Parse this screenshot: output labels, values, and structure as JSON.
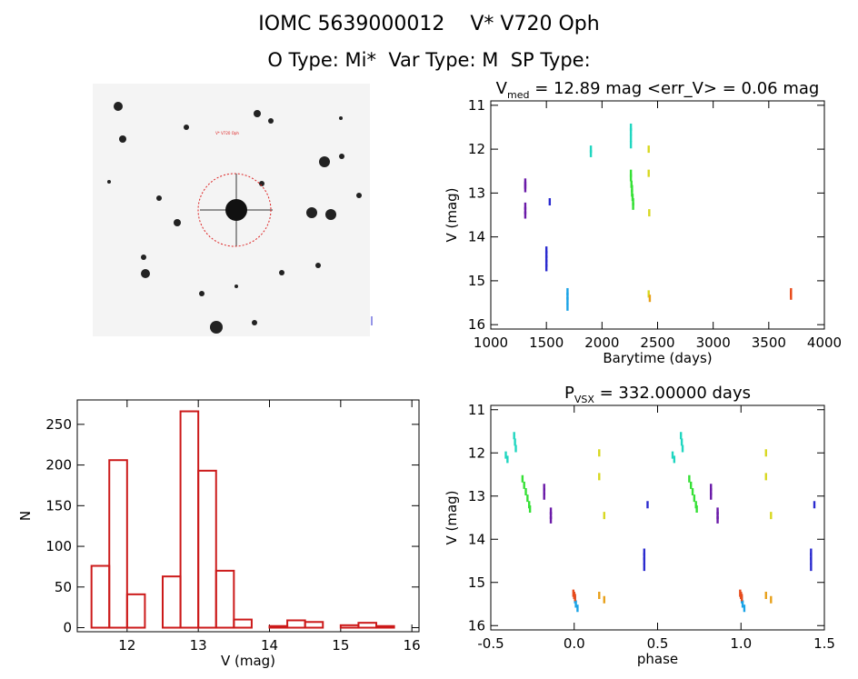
{
  "header": {
    "line1": "IOMC 5639000012    V* V720 Oph",
    "line2": "O Type: Mi*  Var Type: M  SP Type:"
  },
  "image_panel": {
    "description_free": true,
    "label_center": "V* V720 Oph"
  },
  "chart_data": [
    {
      "type": "scatter",
      "title_parts": {
        "sym": "V",
        "sub": "med",
        "rest": " = 12.89 mag <err_V> = 0.06 mag"
      },
      "xlabel": "Barytime (days)",
      "ylabel": "V (mag)",
      "xlim": [
        1000,
        4000
      ],
      "ylim": [
        16.1,
        10.9
      ],
      "xticks": [
        1000,
        1500,
        2000,
        2500,
        3000,
        3500,
        4000
      ],
      "yticks": [
        11,
        12,
        13,
        14,
        15,
        16
      ],
      "series": [
        {
          "color": "#6a1aa8",
          "x": [
            1310,
            1310,
            1310,
            1310,
            1310,
            1310
          ],
          "y": [
            12.75,
            12.82,
            12.9,
            13.3,
            13.4,
            13.5
          ]
        },
        {
          "color": "#2b2bcf",
          "x": [
            1500,
            1500,
            1500,
            1500,
            1500,
            1530
          ],
          "y": [
            14.3,
            14.4,
            14.5,
            14.6,
            14.7,
            13.2
          ]
        },
        {
          "color": "#1aa3e6",
          "x": [
            1690,
            1690,
            1690,
            1690
          ],
          "y": [
            15.25,
            15.35,
            15.45,
            15.6
          ]
        },
        {
          "color": "#20d6c0",
          "x": [
            1900,
            1900,
            2260,
            2260,
            2260,
            2260
          ],
          "y": [
            12.0,
            12.1,
            11.5,
            11.6,
            11.75,
            11.9
          ]
        },
        {
          "color": "#35e035",
          "x": [
            2260,
            2260,
            2265,
            2270,
            2270,
            2275,
            2280,
            2280
          ],
          "y": [
            12.55,
            12.65,
            12.8,
            12.9,
            13.0,
            13.1,
            13.2,
            13.3
          ]
        },
        {
          "color": "#d8d820",
          "x": [
            2420,
            2420,
            2425,
            2420
          ],
          "y": [
            12.0,
            12.55,
            13.45,
            15.3
          ]
        },
        {
          "color": "#e8a01a",
          "x": [
            2430
          ],
          "y": [
            15.4
          ]
        },
        {
          "color": "#e84a1a",
          "x": [
            3700,
            3700,
            3700
          ],
          "y": [
            15.25,
            15.3,
            15.35
          ]
        }
      ]
    },
    {
      "type": "bar",
      "title": "",
      "xlabel": "V (mag)",
      "ylabel": "N",
      "xlim": [
        11.3,
        16.1
      ],
      "ylim": [
        -5,
        280
      ],
      "xticks": [
        12,
        13,
        14,
        15,
        16
      ],
      "yticks": [
        0,
        50,
        100,
        150,
        200,
        250
      ],
      "bin_width": 0.25,
      "bin_starts": [
        11.5,
        11.75,
        12.0,
        12.25,
        12.5,
        12.75,
        13.0,
        13.25,
        13.5,
        13.75,
        14.0,
        14.25,
        14.5,
        14.75,
        15.0,
        15.25,
        15.5
      ],
      "values": [
        76,
        206,
        41,
        0,
        63,
        266,
        193,
        70,
        10,
        0,
        2,
        9,
        7,
        0,
        3,
        6,
        2
      ],
      "color": "#cc1a1a"
    },
    {
      "type": "scatter",
      "title_parts": {
        "sym": "P",
        "sub": "VSX",
        "rest": " = 332.00000 days"
      },
      "xlabel": "phase",
      "ylabel": "V (mag)",
      "xlim": [
        -0.5,
        1.5
      ],
      "ylim": [
        16.1,
        10.9
      ],
      "xticks": [
        -0.5,
        0.0,
        0.5,
        1.0,
        1.5
      ],
      "yticks": [
        11,
        12,
        13,
        14,
        15,
        16
      ],
      "series": [
        {
          "color": "#6a1aa8",
          "x": [
            -0.18,
            -0.18,
            -0.18,
            -0.14,
            -0.14,
            -0.14,
            0.82,
            0.82,
            0.82,
            0.86,
            0.86,
            0.86
          ],
          "y": [
            12.8,
            12.9,
            13.0,
            13.35,
            13.45,
            13.55,
            12.8,
            12.9,
            13.0,
            13.35,
            13.45,
            13.55
          ]
        },
        {
          "color": "#2b2bcf",
          "x": [
            0.42,
            0.42,
            0.42,
            0.42,
            0.44,
            1.42,
            1.42,
            1.42,
            1.42,
            1.44
          ],
          "y": [
            14.3,
            14.4,
            14.5,
            14.65,
            13.2,
            14.3,
            14.4,
            14.5,
            14.65,
            13.2
          ]
        },
        {
          "color": "#1aa3e6",
          "x": [
            0.0,
            0.005,
            0.01,
            0.02,
            1.0,
            1.005,
            1.01,
            1.02
          ],
          "y": [
            15.3,
            15.4,
            15.5,
            15.6,
            15.3,
            15.4,
            15.5,
            15.6
          ]
        },
        {
          "color": "#20d6c0",
          "x": [
            -0.41,
            -0.4,
            -0.36,
            -0.355,
            -0.35,
            0.59,
            0.6,
            0.64,
            0.645,
            0.65
          ],
          "y": [
            12.05,
            12.15,
            11.6,
            11.75,
            11.9,
            12.05,
            12.15,
            11.6,
            11.75,
            11.9
          ]
        },
        {
          "color": "#35e035",
          "x": [
            -0.31,
            -0.3,
            -0.29,
            -0.28,
            -0.27,
            -0.265,
            0.69,
            0.7,
            0.71,
            0.72,
            0.73,
            0.735
          ],
          "y": [
            12.6,
            12.75,
            12.9,
            13.05,
            13.2,
            13.3,
            12.6,
            12.75,
            12.9,
            13.05,
            13.2,
            13.3
          ]
        },
        {
          "color": "#d8d820",
          "x": [
            0.15,
            0.15,
            0.18,
            1.15,
            1.15,
            1.18
          ],
          "y": [
            12.0,
            12.55,
            13.45,
            12.0,
            12.55,
            13.45
          ]
        },
        {
          "color": "#e8a01a",
          "x": [
            0.15,
            0.18,
            1.15,
            1.18
          ],
          "y": [
            15.3,
            15.4,
            15.3,
            15.4
          ]
        },
        {
          "color": "#e84a1a",
          "x": [
            -0.005,
            0.0,
            0.005,
            0.995,
            1.0,
            1.005
          ],
          "y": [
            15.25,
            15.3,
            15.35,
            15.25,
            15.3,
            15.35
          ]
        }
      ]
    }
  ]
}
